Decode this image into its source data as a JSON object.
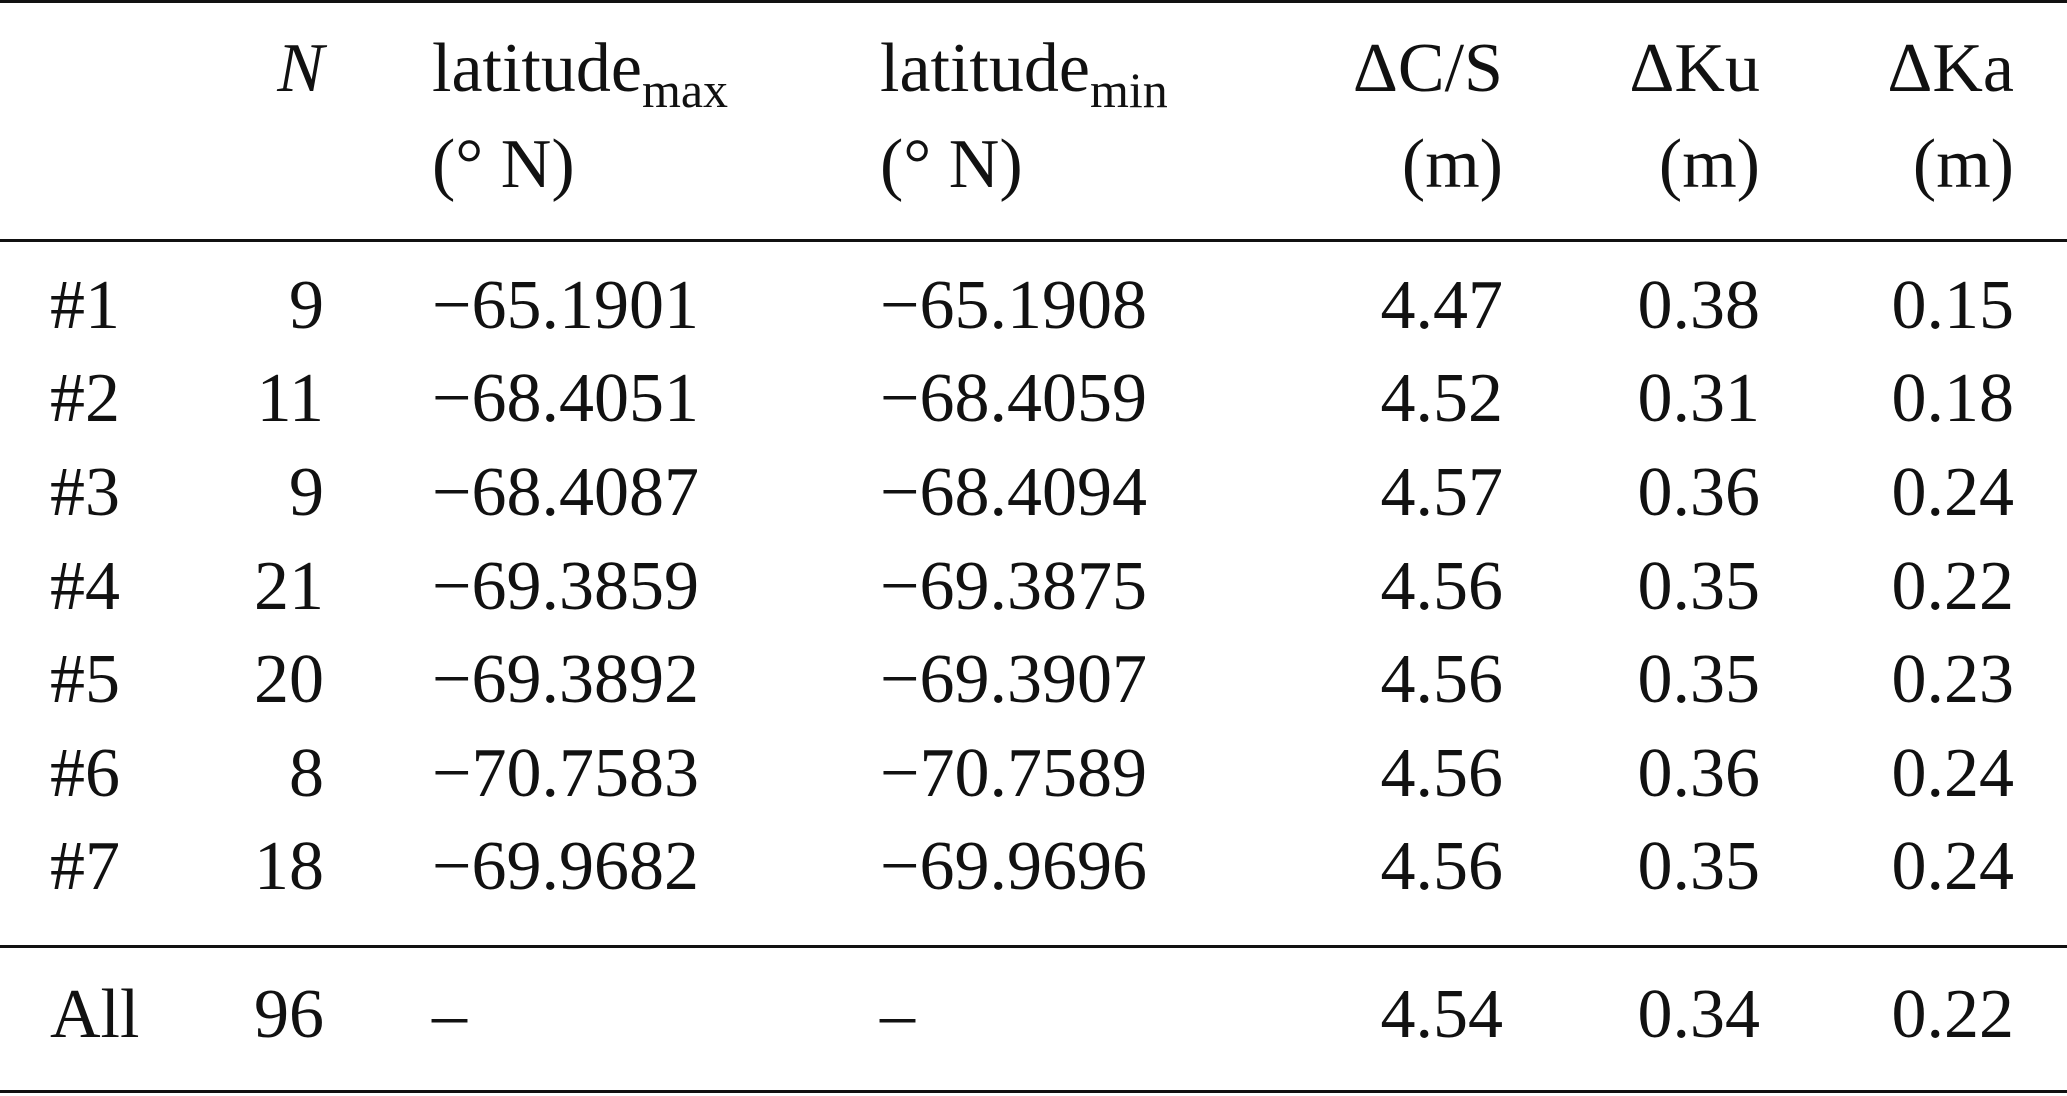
{
  "table": {
    "header": [
      {
        "text": "N"
      },
      {
        "text": "latitude",
        "sub": "max",
        "unit": "(° N)"
      },
      {
        "text": "latitude",
        "sub": "min",
        "unit": "(° N)"
      },
      {
        "text": "ΔC/S",
        "unit": "(m)"
      },
      {
        "text": "ΔKu",
        "unit": "(m)"
      },
      {
        "text": "ΔKa",
        "unit": "(m)"
      }
    ],
    "rows": [
      [
        "#1",
        "9",
        "−65.1901",
        "−65.1908",
        "4.47",
        "0.38",
        "0.15"
      ],
      [
        "#2",
        "11",
        "−68.4051",
        "−68.4059",
        "4.52",
        "0.31",
        "0.18"
      ],
      [
        "#3",
        "9",
        "−68.4087",
        "−68.4094",
        "4.57",
        "0.36",
        "0.24"
      ],
      [
        "#4",
        "21",
        "−69.3859",
        "−69.3875",
        "4.56",
        "0.35",
        "0.22"
      ],
      [
        "#5",
        "20",
        "−69.3892",
        "−69.3907",
        "4.56",
        "0.35",
        "0.23"
      ],
      [
        "#6",
        "8",
        "−70.7583",
        "−70.7589",
        "4.56",
        "0.36",
        "0.24"
      ],
      [
        "#7",
        "18",
        "−69.9682",
        "−69.9696",
        "4.56",
        "0.35",
        "0.24"
      ]
    ],
    "total": [
      "All",
      "96",
      "–",
      "–",
      "4.54",
      "0.34",
      "0.22"
    ]
  }
}
